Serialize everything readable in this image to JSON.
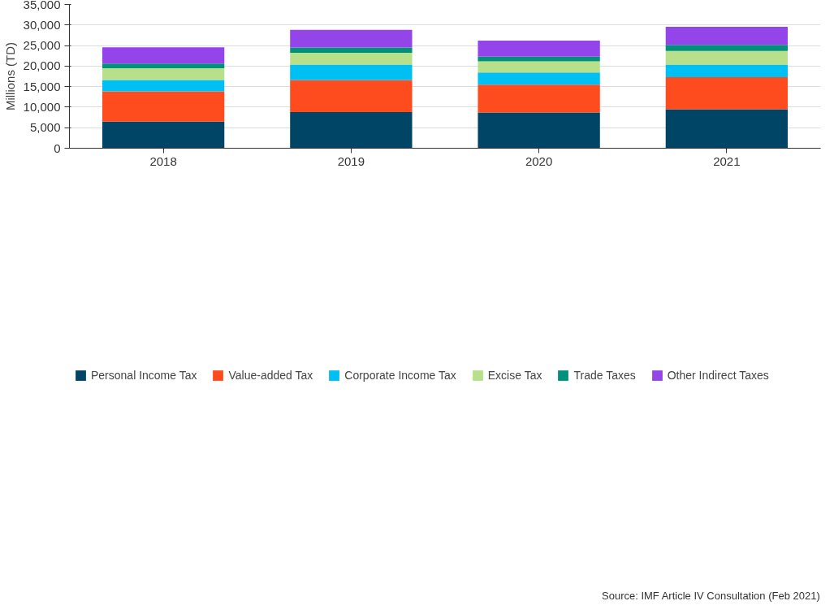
{
  "chart_data": {
    "type": "bar",
    "stacked": true,
    "ylabel": "Millions (TD)",
    "categories": [
      "2018",
      "2019",
      "2020",
      "2021"
    ],
    "series": [
      {
        "name": "Personal Income Tax",
        "color": "#004566",
        "values": [
          6500,
          8800,
          8700,
          9500
        ]
      },
      {
        "name": "Value-added Tax",
        "color": "#ff4c1f",
        "values": [
          7350,
          7800,
          6750,
          7800
        ]
      },
      {
        "name": "Corporate Income Tax",
        "color": "#00bff3",
        "values": [
          2750,
          3750,
          3000,
          3050
        ]
      },
      {
        "name": "Excise Tax",
        "color": "#b8e08a",
        "values": [
          2900,
          2900,
          2700,
          3350
        ]
      },
      {
        "name": "Trade Taxes",
        "color": "#00917a",
        "values": [
          1100,
          1250,
          1150,
          1450
        ]
      },
      {
        "name": "Other Indirect Taxes",
        "color": "#9445ea",
        "values": [
          3950,
          4300,
          3900,
          4400
        ]
      }
    ],
    "ylim": [
      0,
      35000
    ],
    "yticks": [
      0,
      {
        "value": 5000,
        "label": "5,000"
      },
      {
        "value": 10000,
        "label": "10,000"
      },
      {
        "value": 15000,
        "label": "15,000"
      },
      {
        "value": 20000,
        "label": "20,000"
      },
      {
        "value": 25000,
        "label": "25,000"
      },
      {
        "value": 30000,
        "label": "30,000"
      },
      {
        "value": 35000,
        "label": "35,000"
      }
    ],
    "grid": "y",
    "legend": "bottom",
    "annotations": [
      "Source: IMF Article IV Consultation (Feb 2021)"
    ]
  }
}
